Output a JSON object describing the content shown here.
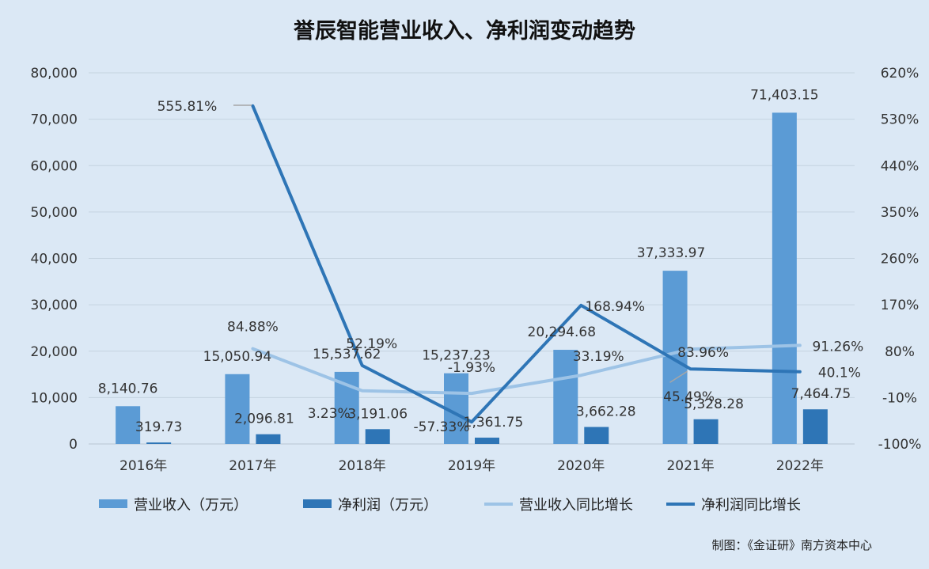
{
  "title": "誉辰智能营业收入、净利润变动趋势",
  "credit": "制图：《金证研》南方资本中心",
  "colors": {
    "background": "#dbe8f5",
    "revenue_bar": "#5b9bd5",
    "profit_bar": "#2e75b6",
    "revenue_growth_line": "#9dc3e6",
    "profit_growth_line": "#2e75b6",
    "gridline": "#c5d3e0",
    "leader_line": "#a6a6a6"
  },
  "chart_data": {
    "type": "bar",
    "categories": [
      "2016年",
      "2017年",
      "2018年",
      "2019年",
      "2020年",
      "2021年",
      "2022年"
    ],
    "y_left": {
      "min": 0,
      "max": 80000,
      "step": 10000,
      "tick_labels": [
        "0",
        "10,000",
        "20,000",
        "30,000",
        "40,000",
        "50,000",
        "60,000",
        "70,000",
        "80,000"
      ]
    },
    "y_right": {
      "min": -100,
      "max": 620,
      "step": 90,
      "tick_labels": [
        "-100%",
        "-10%",
        "80%",
        "170%",
        "260%",
        "350%",
        "440%",
        "530%",
        "620%"
      ]
    },
    "grid": true,
    "legend_position": "bottom",
    "series": [
      {
        "name": "营业收入（万元）",
        "kind": "bar",
        "axis": "left",
        "values": [
          8140.76,
          15050.94,
          15537.62,
          15237.23,
          20294.68,
          37333.97,
          71403.15
        ],
        "labels": [
          "8,140.76",
          "15,050.94",
          "15,537.62",
          "15,237.23",
          "20,294.68",
          "37,333.97",
          "71,403.15"
        ]
      },
      {
        "name": "净利润（万元）",
        "kind": "bar",
        "axis": "left",
        "values": [
          319.73,
          2096.81,
          3191.06,
          1361.75,
          3662.28,
          5328.28,
          7464.75
        ],
        "labels": [
          "319.73",
          "2,096.81",
          "3,191.06",
          "1,361.75",
          "3,662.28",
          "5,328.28",
          "7,464.75"
        ]
      },
      {
        "name": "营业收入同比增长",
        "kind": "line",
        "axis": "right",
        "values": [
          null,
          84.88,
          3.23,
          -1.93,
          33.19,
          83.96,
          91.26
        ],
        "labels": [
          "",
          "84.88%",
          "3.23%",
          "-1.93%",
          "33.19%",
          "83.96%",
          "91.26%"
        ]
      },
      {
        "name": "净利润同比增长",
        "kind": "line",
        "axis": "right",
        "values": [
          null,
          555.81,
          52.19,
          -57.33,
          168.94,
          45.49,
          40.1
        ],
        "labels": [
          "",
          "555.81%",
          "52.19%",
          "-57.33%",
          "168.94%",
          "45.49%",
          "40.1%"
        ]
      }
    ]
  }
}
